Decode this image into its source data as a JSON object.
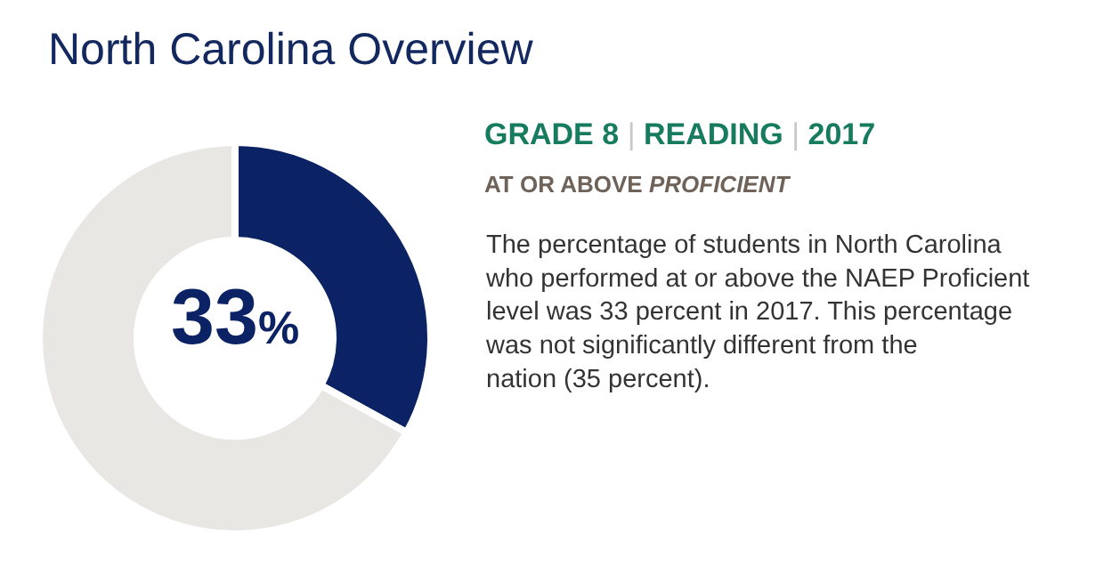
{
  "chart_data": {
    "type": "donut",
    "title": "North Carolina Overview",
    "subtitle": "GRADE 8 | READING | 2017",
    "categories": [
      null,
      null
    ],
    "values": [
      33,
      67
    ],
    "colors": [
      "#0b2265",
      "#e9e7e4"
    ],
    "value_labels": [
      "33%",
      null
    ],
    "annotations": [
      "AT OR ABOVE PROFICIENT",
      "The percentage of students in North Carolina who performed at or above the NAEP Proficient level was 33 percent in 2017. This percentage was not significantly different from the nation (35 percent)."
    ],
    "legend": false
  }
}
